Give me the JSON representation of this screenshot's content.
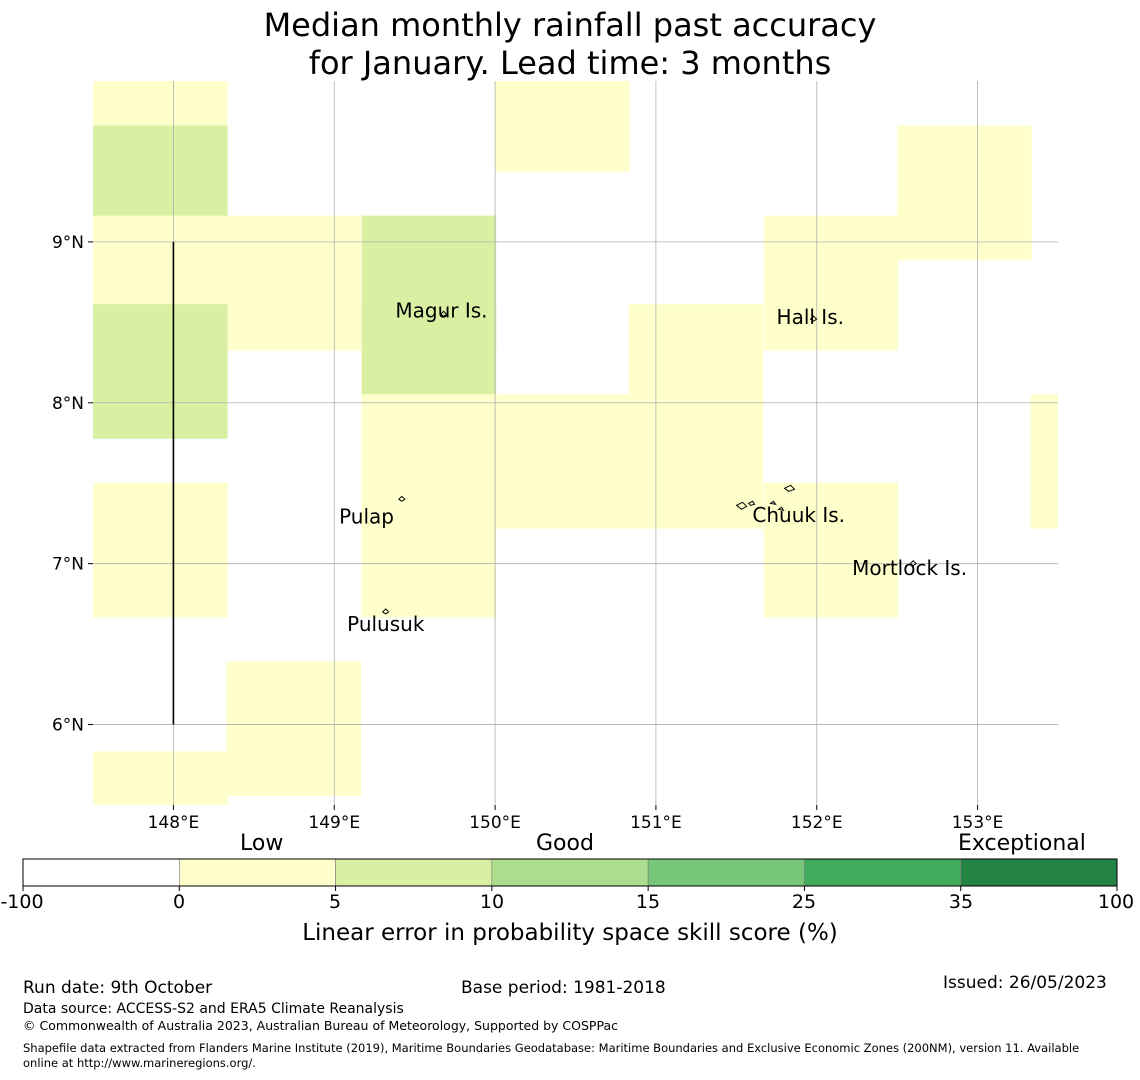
{
  "title": {
    "line1": "Median monthly rainfall past accuracy",
    "line2": "for January. Lead time: 3 months"
  },
  "map": {
    "lon_range": [
      147.5,
      153.5
    ],
    "lat_range": [
      5.5,
      10.0
    ],
    "lon_ticks": [
      {
        "value": 148,
        "label": "148°E"
      },
      {
        "value": 149,
        "label": "149°E"
      },
      {
        "value": 150,
        "label": "150°E"
      },
      {
        "value": 151,
        "label": "151°E"
      },
      {
        "value": 152,
        "label": "152°E"
      },
      {
        "value": 153,
        "label": "153°E"
      }
    ],
    "lat_ticks": [
      {
        "value": 9,
        "label": "9°N"
      },
      {
        "value": 8,
        "label": "8°N"
      },
      {
        "value": 7,
        "label": "7°N"
      },
      {
        "value": 6,
        "label": "6°N"
      }
    ],
    "cell_size_deg": 0.833,
    "cells": [
      {
        "lon0": 147.5,
        "lat0": 9.44,
        "class": 1
      },
      {
        "lon0": 147.5,
        "lat0": 8.89,
        "class": 2
      },
      {
        "lon0": 147.5,
        "lat0": 8.33,
        "class": 1
      },
      {
        "lon0": 148.33,
        "lat0": 8.33,
        "class": 1
      },
      {
        "lon0": 147.5,
        "lat0": 7.78,
        "class": 2
      },
      {
        "lon0": 147.5,
        "lat0": 6.67,
        "class": 1
      },
      {
        "lon0": 147.5,
        "lat0": 5.0,
        "class": 1
      },
      {
        "lon0": 148.33,
        "lat0": 5.56,
        "class": 1
      },
      {
        "lon0": 149.17,
        "lat0": 8.33,
        "class": 2
      },
      {
        "lon0": 149.17,
        "lat0": 7.78,
        "class": 2
      },
      {
        "lon0": 149.17,
        "lat0": 7.22,
        "class": 1
      },
      {
        "lon0": 149.17,
        "lat0": 6.67,
        "class": 1
      },
      {
        "lon0": 150.0,
        "lat0": 9.44,
        "class": 1
      },
      {
        "lon0": 150.0,
        "lat0": 7.22,
        "class": 1
      },
      {
        "lon0": 150.83,
        "lat0": 7.78,
        "class": 1
      },
      {
        "lon0": 150.83,
        "lat0": 7.22,
        "class": 1
      },
      {
        "lon0": 151.67,
        "lat0": 8.33,
        "class": 1
      },
      {
        "lon0": 151.67,
        "lat0": 6.67,
        "class": 1
      },
      {
        "lon0": 152.5,
        "lat0": 8.89,
        "class": 1
      },
      {
        "lon0": 153.33,
        "lat0": 7.22,
        "class": 1
      }
    ],
    "vertical_line": {
      "lon": 148.0,
      "lat_from": 6.0,
      "lat_to": 9.0
    },
    "islands": [
      {
        "name": "Magur Is.",
        "lon": 149.68,
        "lat": 8.55
      },
      {
        "name": "Hall Is.",
        "lon": 151.98,
        "lat": 8.52
      },
      {
        "name": "Pulap",
        "lon": 149.42,
        "lat": 7.4
      },
      {
        "name": "Chuuk Is.",
        "lon": 151.8,
        "lat": 7.4
      },
      {
        "name": "Mortlock Is.",
        "lon": 152.6,
        "lat": 7.0
      },
      {
        "name": "Pulusuk",
        "lon": 149.32,
        "lat": 6.7
      }
    ],
    "island_labels": [
      {
        "text": "Magur Is.",
        "lon": 149.38,
        "lat": 8.53
      },
      {
        "text": "Hall Is.",
        "lon": 151.75,
        "lat": 8.49
      },
      {
        "text": "Pulap",
        "lon": 149.03,
        "lat": 7.25
      },
      {
        "text": "Chuuk Is.",
        "lon": 151.6,
        "lat": 7.26
      },
      {
        "text": "Mortlock Is.",
        "lon": 152.22,
        "lat": 6.93
      },
      {
        "text": "Pulusuk",
        "lon": 149.08,
        "lat": 6.58
      }
    ]
  },
  "colorbar": {
    "category_labels": [
      "Low",
      "Good",
      "Exceptional"
    ],
    "boundaries": [
      "-100",
      "0",
      "5",
      "10",
      "15",
      "25",
      "35",
      "100"
    ],
    "colors": [
      "#ffffff",
      "#ffffcc",
      "#d9f0a3",
      "#addd8e",
      "#78c679",
      "#41ab5d",
      "#238443"
    ],
    "axis_label": "Linear error in probability space skill score (%)"
  },
  "footer": {
    "run_date": "Run date: 9th October",
    "base_period": "Base period: 1981-2018",
    "issued": "Issued: 26/05/2023",
    "data_source": "Data source: ACCESS-S2 and ERA5 Climate Reanalysis",
    "copyright": "© Commonwealth of Australia 2023, Australian Bureau of Meteorology, Supported by COSPPac",
    "shapefile_line1": "Shapefile data extracted from Flanders Marine Institute (2019), Maritime Boundaries Geodatabase: Maritime Boundaries and Exclusive Economic Zones (200NM), version 11. Available",
    "shapefile_line2": "online at http://www.marineregions.org/."
  }
}
